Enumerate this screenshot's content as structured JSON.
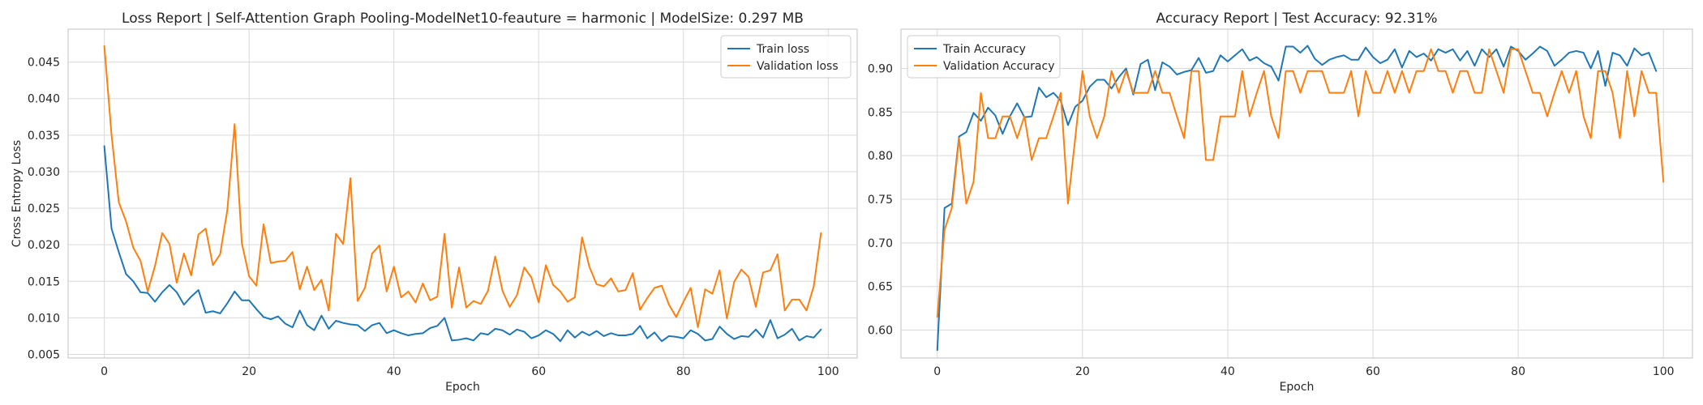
{
  "colors": {
    "train": "#1f77b4",
    "validation": "#ff7f0e"
  },
  "chart_data": [
    {
      "type": "line",
      "title": "Loss Report | Self-Attention Graph Pooling-ModelNet10-feauture = harmonic | ModelSize: 0.297 MB",
      "xlabel": "Epoch",
      "ylabel": "Cross Entropy Loss",
      "xlim": [
        -5,
        104
      ],
      "ylim": [
        0.0045,
        0.0495
      ],
      "xticks": [
        0,
        20,
        40,
        60,
        80,
        100
      ],
      "yticks": [
        0.005,
        0.01,
        0.015,
        0.02,
        0.025,
        0.03,
        0.035,
        0.04,
        0.045
      ],
      "ytick_labels": [
        "0.005",
        "0.010",
        "0.015",
        "0.020",
        "0.025",
        "0.030",
        "0.035",
        "0.040",
        "0.045"
      ],
      "grid": true,
      "legend": "top-right",
      "series": [
        {
          "name": "Train loss",
          "color": "#1f77b4",
          "values": [
            0.0335,
            0.0222,
            0.019,
            0.016,
            0.015,
            0.0135,
            0.0134,
            0.0122,
            0.0135,
            0.0145,
            0.0135,
            0.0118,
            0.0129,
            0.0138,
            0.0107,
            0.0109,
            0.0106,
            0.012,
            0.0136,
            0.0124,
            0.0124,
            0.0112,
            0.0101,
            0.0098,
            0.0102,
            0.0092,
            0.0087,
            0.011,
            0.009,
            0.0083,
            0.0103,
            0.0085,
            0.0096,
            0.0093,
            0.0091,
            0.009,
            0.0082,
            0.009,
            0.0093,
            0.0079,
            0.0083,
            0.0079,
            0.0076,
            0.0078,
            0.0079,
            0.0086,
            0.0089,
            0.01,
            0.0069,
            0.007,
            0.0072,
            0.0069,
            0.0079,
            0.0077,
            0.0085,
            0.0083,
            0.0077,
            0.0084,
            0.0081,
            0.0072,
            0.0076,
            0.0083,
            0.0078,
            0.0068,
            0.0083,
            0.0073,
            0.0081,
            0.0076,
            0.0082,
            0.0075,
            0.0079,
            0.0076,
            0.0076,
            0.0078,
            0.0089,
            0.0072,
            0.008,
            0.0068,
            0.0075,
            0.0074,
            0.0072,
            0.0083,
            0.0078,
            0.0069,
            0.0071,
            0.0088,
            0.0078,
            0.0071,
            0.0075,
            0.0074,
            0.0084,
            0.0073,
            0.0097,
            0.0072,
            0.0077,
            0.0085,
            0.0069,
            0.0075,
            0.0073,
            0.0084
          ]
        },
        {
          "name": "Validation loss",
          "color": "#ff7f0e",
          "values": [
            0.0472,
            0.035,
            0.0258,
            0.0232,
            0.0196,
            0.0178,
            0.0136,
            0.0171,
            0.0216,
            0.0201,
            0.0148,
            0.0188,
            0.0158,
            0.0214,
            0.0222,
            0.0172,
            0.0187,
            0.0248,
            0.0365,
            0.0202,
            0.0157,
            0.0144,
            0.0228,
            0.0175,
            0.0177,
            0.0178,
            0.019,
            0.0139,
            0.017,
            0.0138,
            0.0152,
            0.011,
            0.0215,
            0.0201,
            0.0291,
            0.0123,
            0.0141,
            0.0188,
            0.0199,
            0.0136,
            0.017,
            0.0128,
            0.0136,
            0.0121,
            0.0147,
            0.0124,
            0.0129,
            0.0215,
            0.0114,
            0.0169,
            0.0114,
            0.0123,
            0.0119,
            0.0137,
            0.0184,
            0.0137,
            0.0115,
            0.0131,
            0.0169,
            0.0155,
            0.0121,
            0.0172,
            0.0145,
            0.0136,
            0.0122,
            0.0128,
            0.021,
            0.017,
            0.0146,
            0.0143,
            0.0154,
            0.0136,
            0.0138,
            0.0161,
            0.0111,
            0.0127,
            0.0141,
            0.0144,
            0.0118,
            0.0101,
            0.0122,
            0.0141,
            0.0087,
            0.0139,
            0.0133,
            0.0165,
            0.0099,
            0.0149,
            0.0166,
            0.0156,
            0.0115,
            0.0162,
            0.0165,
            0.0187,
            0.011,
            0.0125,
            0.0125,
            0.011,
            0.0143,
            0.0216
          ]
        }
      ]
    },
    {
      "type": "line",
      "title": "Accuracy Report | Test Accuracy: 92.31%",
      "xlabel": "Epoch",
      "ylabel": "",
      "xlim": [
        -5,
        104
      ],
      "ylim": [
        0.568,
        0.945
      ],
      "xticks": [
        0,
        20,
        40,
        60,
        80,
        100
      ],
      "yticks": [
        0.6,
        0.65,
        0.7,
        0.75,
        0.8,
        0.85,
        0.9
      ],
      "ytick_labels": [
        "0.60",
        "0.65",
        "0.70",
        "0.75",
        "0.80",
        "0.85",
        "0.90"
      ],
      "grid": true,
      "legend": "top-left",
      "series": [
        {
          "name": "Train Accuracy",
          "color": "#1f77b4",
          "values": [
            0.577,
            0.74,
            0.745,
            0.822,
            0.827,
            0.849,
            0.84,
            0.855,
            0.846,
            0.825,
            0.845,
            0.86,
            0.844,
            0.845,
            0.878,
            0.867,
            0.872,
            0.863,
            0.835,
            0.856,
            0.863,
            0.879,
            0.887,
            0.887,
            0.877,
            0.89,
            0.9,
            0.87,
            0.905,
            0.91,
            0.875,
            0.907,
            0.902,
            0.893,
            0.896,
            0.898,
            0.912,
            0.895,
            0.897,
            0.915,
            0.908,
            0.915,
            0.922,
            0.909,
            0.913,
            0.906,
            0.902,
            0.886,
            0.925,
            0.925,
            0.918,
            0.926,
            0.911,
            0.904,
            0.91,
            0.913,
            0.915,
            0.91,
            0.91,
            0.924,
            0.913,
            0.906,
            0.91,
            0.922,
            0.901,
            0.92,
            0.913,
            0.917,
            0.909,
            0.922,
            0.918,
            0.922,
            0.909,
            0.92,
            0.903,
            0.922,
            0.913,
            0.922,
            0.902,
            0.925,
            0.92,
            0.91,
            0.917,
            0.925,
            0.92,
            0.903,
            0.91,
            0.918,
            0.92,
            0.918,
            0.9,
            0.92,
            0.88,
            0.918,
            0.915,
            0.903,
            0.923,
            0.915,
            0.918,
            0.897
          ]
        },
        {
          "name": "Validation Accuracy",
          "color": "#ff7f0e",
          "values": [
            0.615,
            0.715,
            0.74,
            0.82,
            0.745,
            0.77,
            0.872,
            0.82,
            0.82,
            0.845,
            0.845,
            0.82,
            0.845,
            0.795,
            0.82,
            0.82,
            0.845,
            0.872,
            0.745,
            0.82,
            0.897,
            0.845,
            0.82,
            0.845,
            0.897,
            0.872,
            0.897,
            0.872,
            0.872,
            0.872,
            0.897,
            0.872,
            0.872,
            0.845,
            0.82,
            0.897,
            0.897,
            0.795,
            0.795,
            0.845,
            0.845,
            0.845,
            0.897,
            0.845,
            0.872,
            0.897,
            0.845,
            0.82,
            0.897,
            0.897,
            0.872,
            0.897,
            0.897,
            0.897,
            0.872,
            0.872,
            0.872,
            0.897,
            0.845,
            0.897,
            0.872,
            0.872,
            0.897,
            0.872,
            0.897,
            0.872,
            0.897,
            0.897,
            0.922,
            0.897,
            0.897,
            0.872,
            0.897,
            0.897,
            0.872,
            0.872,
            0.922,
            0.897,
            0.872,
            0.922,
            0.922,
            0.897,
            0.872,
            0.872,
            0.845,
            0.872,
            0.897,
            0.872,
            0.897,
            0.845,
            0.82,
            0.897,
            0.897,
            0.872,
            0.82,
            0.897,
            0.845,
            0.897,
            0.872,
            0.872,
            0.77
          ]
        }
      ]
    }
  ]
}
